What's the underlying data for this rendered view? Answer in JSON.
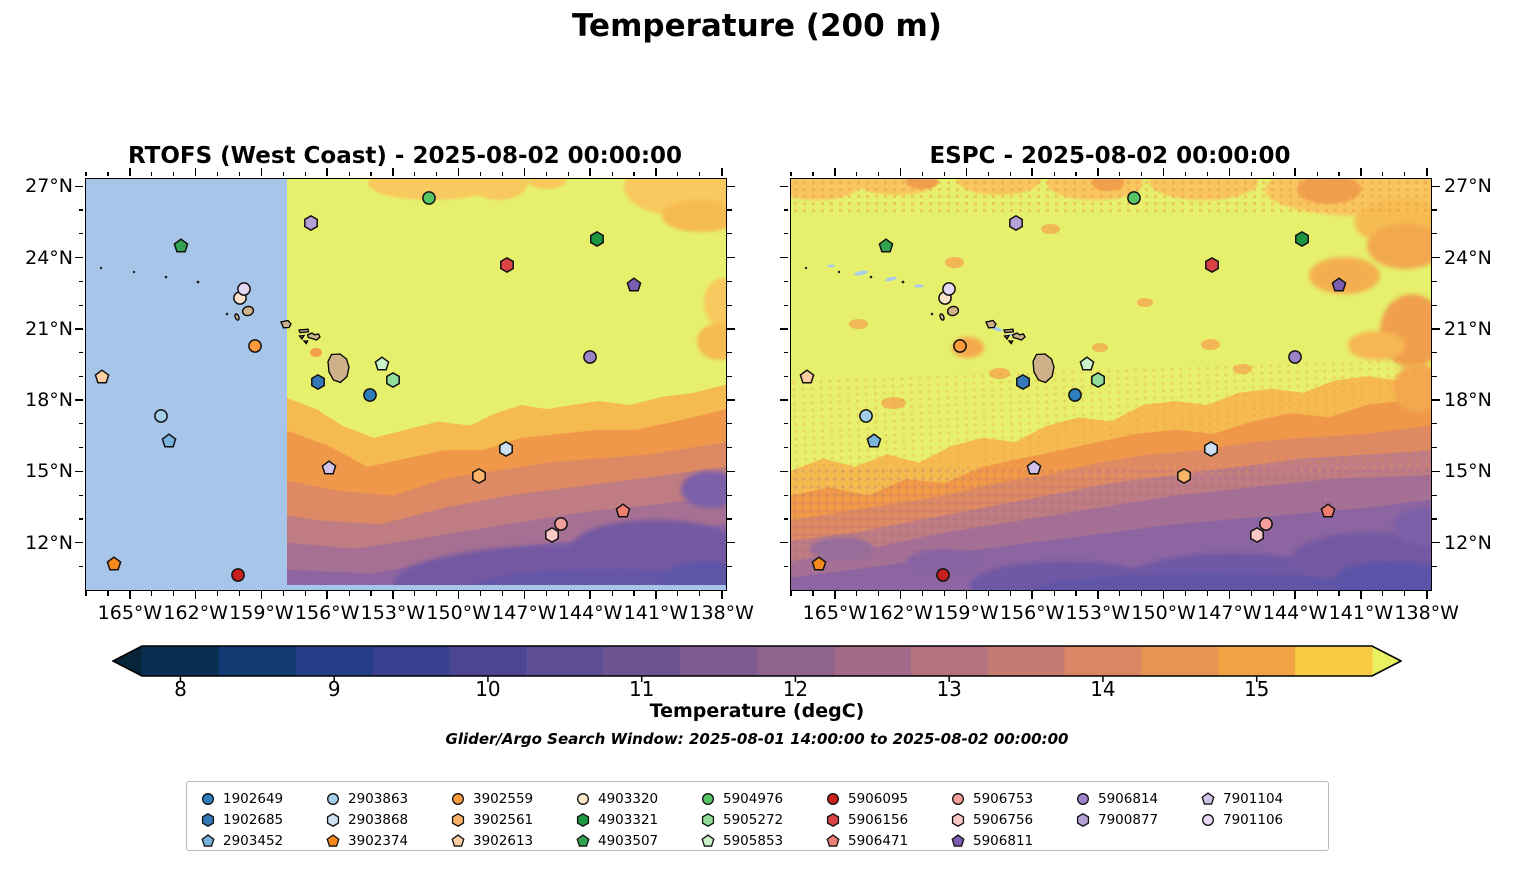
{
  "suptitle": "Temperature (200 m)",
  "panels": [
    {
      "title": "RTOFS (West Coast) - 2025-08-02 00:00:00",
      "model": "RTOFS (West Coast)",
      "time": "2025-08-02 00:00:00",
      "label_side": "left"
    },
    {
      "title": "ESPC - 2025-08-02 00:00:00",
      "model": "ESPC",
      "time": "2025-08-02 00:00:00",
      "label_side": "right"
    }
  ],
  "colorbar": {
    "label": "Temperature (degC)",
    "tick_values": [
      8,
      9,
      10,
      11,
      12,
      13,
      14,
      15
    ],
    "range": [
      7.75,
      15.75
    ],
    "under_arrow_color": "#082438",
    "over_arrow_color": "#e9f163",
    "segment_colors": [
      "#0a2d52",
      "#143a74",
      "#253e89",
      "#3a4090",
      "#4c4692",
      "#5d4d93",
      "#6e5493",
      "#7f5b92",
      "#90628e",
      "#a26a88",
      "#b4727e",
      "#c67b72",
      "#d88664",
      "#e79353",
      "#f2a444",
      "#f8cb44"
    ]
  },
  "footnote": "Glider/Argo Search Window: 2025-08-01 14:00:00 to 2025-08-02 00:00:00",
  "chart_data": {
    "type": "heatmap",
    "title": "Temperature (200 m)",
    "variable": "Temperature",
    "units": "degC",
    "depth_m": 200,
    "panels": [
      {
        "name": "RTOFS (West Coast)",
        "valid_time": "2025-08-02 00:00:00",
        "note": "model grid has no data west of ~158W; masked area shown light blue, thin masked strip along bottom edge"
      },
      {
        "name": "ESPC",
        "valid_time": "2025-08-02 00:00:00",
        "note": "full-domain field, noisier texture; warm (>15.5C) chartreuse north, cold purple (~10-11C) southeast"
      }
    ],
    "field_summary": "~15.5+ degC (chartreuse) north of ~16-19N transitioning through 14-13C (orange) to 10-11C (purple) toward the south; warm mottling along 27N and the eastern edge",
    "axes": {
      "lon_min": -167.05,
      "lon_max": -137.85,
      "lat_min": 10.05,
      "lat_max": 27.35,
      "lon_tick_values": [
        -165,
        -162,
        -159,
        -156,
        -153,
        -150,
        -147,
        -144,
        -141,
        -138
      ],
      "lon_tick_labels": [
        "165°W",
        "162°W",
        "159°W",
        "156°W",
        "153°W",
        "150°W",
        "147°W",
        "144°W",
        "141°W",
        "138°W"
      ],
      "lat_tick_values": [
        27,
        24,
        21,
        18,
        15,
        12
      ],
      "lat_tick_labels": [
        "27°N",
        "24°N",
        "21°N",
        "18°N",
        "15°N",
        "12°N"
      ]
    },
    "rtofs_coverage_west_limit_lon": -157.9,
    "floats": [
      {
        "id": "1902649",
        "shape": "circle",
        "color": "#2e7ebc",
        "lon": -154.1,
        "lat": 18.3,
        "x": 44.35,
        "y": 52.54
      },
      {
        "id": "1902685",
        "shape": "hexagon",
        "color": "#3579b8",
        "lon": -156.5,
        "lat": 18.8,
        "x": 36.23,
        "y": 49.36
      },
      {
        "id": "2903452",
        "shape": "pentagon",
        "color": "#78b4dc",
        "lon": -163.3,
        "lat": 16.3,
        "x": 12.95,
        "y": 63.7
      },
      {
        "id": "2903863",
        "shape": "circle",
        "color": "#a3cee8",
        "lon": -163.6,
        "lat": 17.4,
        "x": 11.71,
        "y": 57.63
      },
      {
        "id": "2903868",
        "shape": "hexagon",
        "color": "#cde1f2",
        "lon": -147.9,
        "lat": 16.0,
        "x": 65.58,
        "y": 65.66
      },
      {
        "id": "3902374",
        "shape": "pentagon",
        "color": "#f68a1f",
        "lon": -165.8,
        "lat": 11.2,
        "x": 4.35,
        "y": 93.58
      },
      {
        "id": "3902559",
        "shape": "circle",
        "color": "#fb9b3c",
        "lon": -159.4,
        "lat": 20.3,
        "x": 26.37,
        "y": 40.64
      },
      {
        "id": "3902561",
        "shape": "hexagon",
        "color": "#fcb469",
        "lon": -149.1,
        "lat": 14.9,
        "x": 61.37,
        "y": 72.2
      },
      {
        "id": "3902613",
        "shape": "pentagon",
        "color": "#fdcfa0",
        "lon": -166.3,
        "lat": 19.0,
        "x": 2.5,
        "y": 48.15
      },
      {
        "id": "4903320",
        "shape": "circle",
        "color": "#fee3cb",
        "lon": -160.0,
        "lat": 22.3,
        "x": 24.14,
        "y": 28.96
      },
      {
        "id": "4903321",
        "shape": "hexagon",
        "color": "#1e9641",
        "lon": -143.8,
        "lat": 24.8,
        "x": 79.79,
        "y": 14.62
      },
      {
        "id": "4903507",
        "shape": "pentagon",
        "color": "#33a352",
        "lon": -162.7,
        "lat": 24.5,
        "x": 14.83,
        "y": 16.36
      },
      {
        "id": "5904976",
        "shape": "circle",
        "color": "#57c566",
        "lon": -151.4,
        "lat": 26.5,
        "x": 53.56,
        "y": 4.68
      },
      {
        "id": "5905272",
        "shape": "hexagon",
        "color": "#90de9a",
        "lon": -153.1,
        "lat": 18.9,
        "x": 47.95,
        "y": 48.9
      },
      {
        "id": "5905853",
        "shape": "pentagon",
        "color": "#c9f4c9",
        "lon": -153.6,
        "lat": 19.6,
        "x": 46.23,
        "y": 45.03
      },
      {
        "id": "5906095",
        "shape": "circle",
        "color": "#c91f1f",
        "lon": -160.1,
        "lat": 10.7,
        "x": 23.73,
        "y": 96.24
      },
      {
        "id": "5906156",
        "shape": "hexagon",
        "color": "#d94343",
        "lon": -147.9,
        "lat": 23.7,
        "x": 65.75,
        "y": 20.98
      },
      {
        "id": "5906471",
        "shape": "pentagon",
        "color": "#ef7f72",
        "lon": -142.6,
        "lat": 13.4,
        "x": 83.87,
        "y": 80.69
      },
      {
        "id": "5906753",
        "shape": "circle",
        "color": "#f5a19b",
        "lon": -145.4,
        "lat": 12.8,
        "x": 74.18,
        "y": 83.87
      },
      {
        "id": "5906756",
        "shape": "hexagon",
        "color": "#fbc9c5",
        "lon": -145.8,
        "lat": 12.4,
        "x": 72.77,
        "y": 86.59
      },
      {
        "id": "5906811",
        "shape": "pentagon",
        "color": "#7a5cb1",
        "lon": -142.1,
        "lat": 22.9,
        "x": 85.55,
        "y": 25.84
      },
      {
        "id": "5906814",
        "shape": "circle",
        "color": "#9c82c6",
        "lon": -144.1,
        "lat": 19.9,
        "x": 78.7,
        "y": 43.29
      },
      {
        "id": "7900877",
        "shape": "hexagon",
        "color": "#b79fd8",
        "lon": -156.8,
        "lat": 25.5,
        "x": 35.14,
        "y": 10.75
      },
      {
        "id": "7901104",
        "shape": "pentagon",
        "color": "#d3c2e8",
        "lon": -156.0,
        "lat": 15.2,
        "x": 37.95,
        "y": 70.29
      },
      {
        "id": "7901106",
        "shape": "circle",
        "color": "#e4d8f4",
        "lon": -159.9,
        "lat": 22.7,
        "x": 24.66,
        "y": 26.82
      }
    ],
    "legend_columns": [
      [
        "1902649",
        "1902685",
        "2903452"
      ],
      [
        "2903863",
        "2903868",
        "3902374"
      ],
      [
        "3902559",
        "3902561",
        "3902613"
      ],
      [
        "4903320",
        "4903321",
        "4903507"
      ],
      [
        "5904976",
        "5905272",
        "5905853"
      ],
      [
        "5906095",
        "5906156",
        "5906471"
      ],
      [
        "5906753",
        "5906756",
        "5906811"
      ],
      [
        "5906814",
        "7900877"
      ],
      [
        "7901104",
        "7901106"
      ]
    ]
  }
}
